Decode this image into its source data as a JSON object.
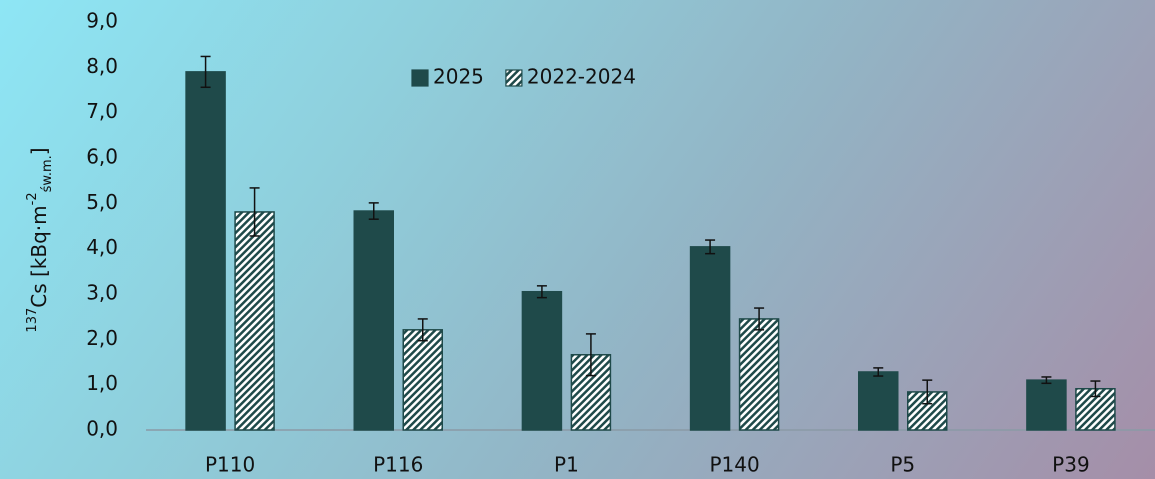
{
  "chart_data": {
    "type": "bar",
    "ylabel": {
      "sup1": "137",
      "main": "Cs [kBq·m",
      "sup2": "-2",
      "sub": "św.m.",
      "end": "]"
    },
    "categories": [
      "P110",
      "P116",
      "P1",
      "P140",
      "P5",
      "P39"
    ],
    "series": [
      {
        "name": "2025",
        "color": "#1f4a4a",
        "pattern": "solid",
        "values": [
          7.9,
          4.83,
          3.05,
          4.04,
          1.28,
          1.1
        ],
        "errors": [
          0.34,
          0.18,
          0.13,
          0.15,
          0.09,
          0.07
        ]
      },
      {
        "name": "2022-2024",
        "color": "#1f4a4a",
        "pattern": "hatch",
        "values": [
          4.81,
          2.21,
          1.66,
          2.45,
          0.84,
          0.91
        ],
        "errors": [
          0.53,
          0.24,
          0.46,
          0.24,
          0.26,
          0.17
        ]
      }
    ],
    "ylim": [
      0,
      9
    ],
    "yticks": [
      {
        "value": 0,
        "label": "0,0"
      },
      {
        "value": 1,
        "label": "1,0"
      },
      {
        "value": 2,
        "label": "2,0"
      },
      {
        "value": 3,
        "label": "3,0"
      },
      {
        "value": 4,
        "label": "4,0"
      },
      {
        "value": 5,
        "label": "5,0"
      },
      {
        "value": 6,
        "label": "6,0"
      },
      {
        "value": 7,
        "label": "7,0"
      },
      {
        "value": 8,
        "label": "8,0"
      },
      {
        "value": 9,
        "label": "9,0"
      }
    ],
    "grid": false,
    "legend": "top"
  }
}
